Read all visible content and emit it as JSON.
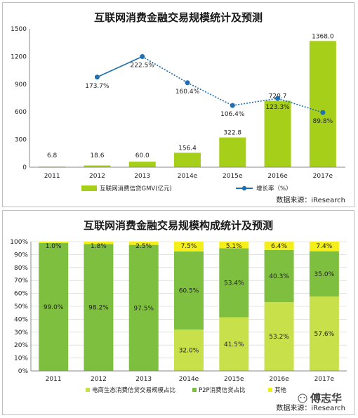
{
  "chart_data": [
    {
      "type": "bar",
      "title": "互联网消费金融交易规模统计及预测",
      "categories": [
        "2011",
        "2012",
        "2013",
        "2014e",
        "2015e",
        "2016e",
        "2017e"
      ],
      "ylim": [
        0,
        1500
      ],
      "yticks": [
        "0",
        "300",
        "600",
        "900",
        "1200",
        "1500"
      ],
      "series": [
        {
          "name": "互联网消费信贷GMV(亿元)",
          "type": "bar",
          "color": "#a6cf1a",
          "values": [
            6.8,
            18.6,
            60.0,
            156.4,
            322.8,
            720.7,
            1368.0
          ],
          "labels": [
            "6.8",
            "18.6",
            "60.0",
            "156.4",
            "322.8",
            "720.7",
            "1368.0"
          ]
        },
        {
          "name": "增长率（%）",
          "type": "line",
          "color": "#1f6fb1",
          "values": [
            null,
            173.7,
            222.5,
            160.4,
            106.4,
            123.3,
            89.8
          ],
          "labels": [
            "",
            "173.7%",
            "222.5%",
            "160.4%",
            "106.4%",
            "123.3%",
            "89.8%"
          ]
        }
      ],
      "source": "数据来源：iResearch"
    },
    {
      "type": "bar",
      "stacked": "percent",
      "title": "互联网消费金融交易规模构成统计及预测",
      "categories": [
        "2011",
        "2012",
        "2013",
        "2014e",
        "2015e",
        "2016e",
        "2017e"
      ],
      "yticks": [
        "0%",
        "10%",
        "20%",
        "30%",
        "40%",
        "50%",
        "60%",
        "70%",
        "80%",
        "90%",
        "100%"
      ],
      "series": [
        {
          "name": "电商生态消费信贷交易规模占比",
          "color": "#c8e04a",
          "values": [
            0,
            0,
            0,
            32.0,
            41.5,
            53.2,
            57.6
          ],
          "labels": [
            "",
            "",
            "",
            "32.0%",
            "41.5%",
            "53.2%",
            "57.6%"
          ]
        },
        {
          "name": "P2P消费信贷占比",
          "color": "#7fbf3f",
          "values": [
            99.0,
            98.2,
            97.5,
            60.5,
            53.4,
            40.3,
            35.0
          ],
          "labels": [
            "99.0%",
            "98.2%",
            "97.5%",
            "60.5%",
            "53.4%",
            "40.3%",
            "35.0%"
          ]
        },
        {
          "name": "其他",
          "color": "#f4ee1a",
          "values": [
            1.0,
            1.8,
            2.5,
            7.5,
            5.1,
            6.4,
            7.4
          ],
          "labels": [
            "1.0%",
            "1.8%",
            "2.5%",
            "7.5%",
            "5.1%",
            "6.4%",
            "7.4%"
          ]
        }
      ],
      "source": "数据来源：iResearch",
      "watermark": "傅志华"
    }
  ]
}
